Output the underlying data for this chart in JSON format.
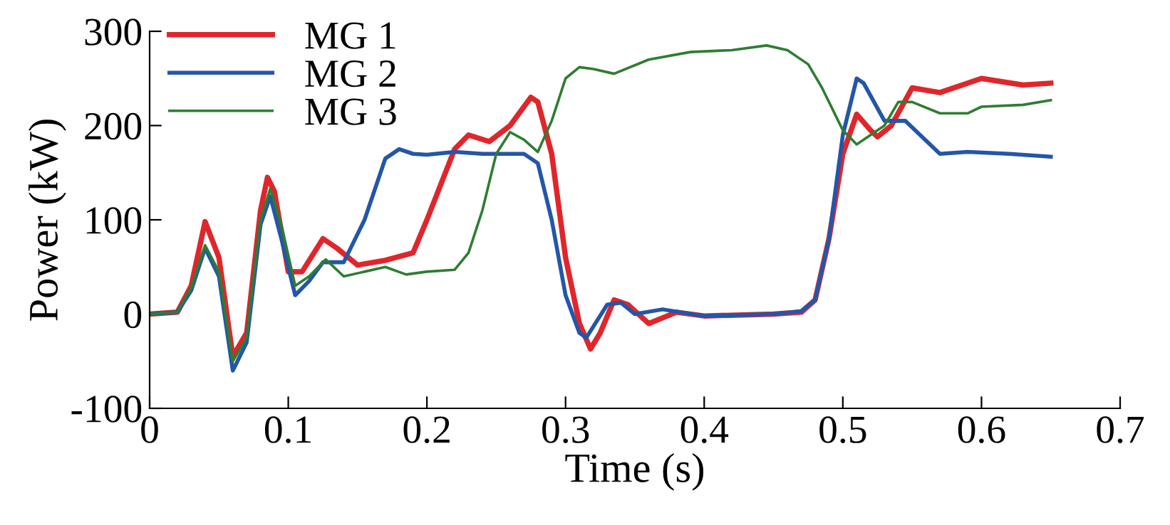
{
  "chart_data": {
    "type": "line",
    "xlabel": "Time (s)",
    "ylabel": "Power (kW)",
    "xlim": [
      0,
      0.7
    ],
    "ylim": [
      -100,
      300
    ],
    "xticks": [
      0,
      0.1,
      0.2,
      0.3,
      0.4,
      0.5,
      0.6,
      0.7
    ],
    "yticks": [
      -100,
      0,
      100,
      200,
      300
    ],
    "grid": false,
    "legend": "top left",
    "marker": "none",
    "line_style": "solid",
    "series": [
      {
        "name": "MG 1",
        "color": "#e0262b",
        "x": [
          0,
          0.02,
          0.03,
          0.04,
          0.05,
          0.06,
          0.07,
          0.08,
          0.085,
          0.09,
          0.1,
          0.11,
          0.125,
          0.135,
          0.15,
          0.17,
          0.19,
          0.2,
          0.22,
          0.23,
          0.245,
          0.26,
          0.275,
          0.28,
          0.29,
          0.3,
          0.31,
          0.318,
          0.325,
          0.335,
          0.345,
          0.36,
          0.38,
          0.4,
          0.45,
          0.47,
          0.48,
          0.49,
          0.5,
          0.51,
          0.52,
          0.525,
          0.535,
          0.55,
          0.57,
          0.6,
          0.63,
          0.65
        ],
        "values": [
          0,
          2,
          30,
          98,
          60,
          -45,
          -20,
          110,
          145,
          130,
          45,
          45,
          80,
          70,
          52,
          57,
          65,
          100,
          175,
          190,
          183,
          200,
          230,
          225,
          170,
          60,
          -10,
          -37,
          -20,
          15,
          10,
          -10,
          2,
          -2,
          0,
          2,
          15,
          80,
          170,
          212,
          195,
          188,
          200,
          240,
          235,
          250,
          243,
          245
        ]
      },
      {
        "name": "MG 2",
        "color": "#2456a8",
        "x": [
          0,
          0.02,
          0.03,
          0.04,
          0.05,
          0.06,
          0.07,
          0.08,
          0.087,
          0.095,
          0.105,
          0.115,
          0.125,
          0.14,
          0.155,
          0.17,
          0.18,
          0.19,
          0.2,
          0.22,
          0.24,
          0.27,
          0.28,
          0.29,
          0.3,
          0.31,
          0.315,
          0.33,
          0.34,
          0.35,
          0.37,
          0.4,
          0.45,
          0.47,
          0.48,
          0.49,
          0.5,
          0.51,
          0.515,
          0.53,
          0.545,
          0.57,
          0.59,
          0.62,
          0.65
        ],
        "values": [
          0,
          2,
          25,
          70,
          40,
          -60,
          -30,
          95,
          125,
          80,
          20,
          35,
          55,
          55,
          100,
          165,
          175,
          170,
          169,
          172,
          170,
          170,
          160,
          100,
          20,
          -20,
          -25,
          10,
          12,
          0,
          5,
          -2,
          0,
          3,
          15,
          80,
          190,
          250,
          245,
          205,
          205,
          170,
          172,
          170,
          167
        ]
      },
      {
        "name": "MG 3",
        "color": "#2e7d32",
        "x": [
          0,
          0.02,
          0.03,
          0.04,
          0.05,
          0.06,
          0.07,
          0.08,
          0.087,
          0.095,
          0.105,
          0.115,
          0.127,
          0.14,
          0.155,
          0.17,
          0.185,
          0.2,
          0.22,
          0.23,
          0.24,
          0.25,
          0.26,
          0.27,
          0.28,
          0.29,
          0.3,
          0.31,
          0.32,
          0.335,
          0.36,
          0.39,
          0.42,
          0.445,
          0.46,
          0.475,
          0.485,
          0.5,
          0.51,
          0.53,
          0.54,
          0.55,
          0.57,
          0.59,
          0.6,
          0.63,
          0.65
        ],
        "values": [
          0,
          2,
          28,
          73,
          45,
          -50,
          -25,
          100,
          133,
          95,
          30,
          40,
          58,
          40,
          45,
          50,
          42,
          45,
          47,
          65,
          110,
          170,
          193,
          185,
          172,
          205,
          250,
          262,
          260,
          255,
          270,
          278,
          280,
          285,
          280,
          265,
          240,
          195,
          180,
          200,
          225,
          225,
          213,
          213,
          220,
          222,
          227
        ]
      }
    ]
  }
}
